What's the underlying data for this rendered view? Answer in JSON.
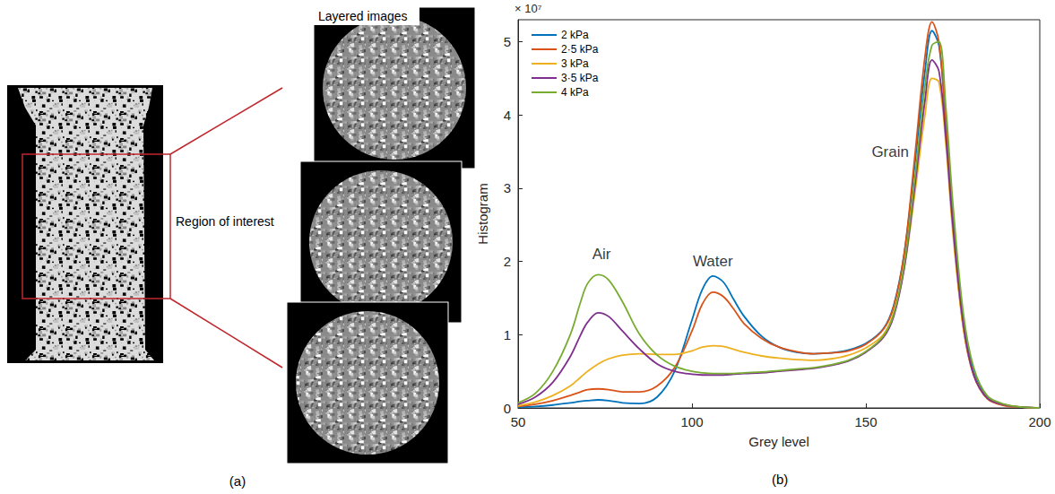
{
  "figure": {
    "panel_a": {
      "label": "(a)",
      "inset_title": "Layered images",
      "annotation": "Region of interest"
    },
    "panel_b": {
      "label": "(b)"
    }
  },
  "chart_data": {
    "type": "line",
    "x_label": "Grey level",
    "y_label": "Histogram",
    "y_scale_label": "× 10⁷",
    "x": [
      50,
      55,
      60,
      65,
      68,
      70,
      73,
      76,
      80,
      85,
      90,
      95,
      100,
      103,
      106,
      109,
      112,
      115,
      120,
      125,
      130,
      135,
      140,
      145,
      150,
      155,
      158,
      161,
      164,
      167,
      169,
      171,
      173,
      175,
      178,
      181,
      185,
      190,
      195,
      200
    ],
    "series": [
      {
        "name": "2 kPa",
        "color": "#0072bd",
        "values": [
          0.01,
          0.02,
          0.04,
          0.07,
          0.09,
          0.1,
          0.11,
          0.1,
          0.07,
          0.06,
          0.15,
          0.5,
          1.2,
          1.62,
          1.8,
          1.72,
          1.48,
          1.25,
          0.98,
          0.83,
          0.76,
          0.74,
          0.75,
          0.79,
          0.88,
          1.08,
          1.4,
          2.1,
          3.3,
          4.6,
          5.15,
          4.95,
          3.9,
          2.6,
          1.2,
          0.5,
          0.15,
          0.04,
          0.01,
          0
        ]
      },
      {
        "name": "2·5 kPa",
        "color": "#d95319",
        "values": [
          0.02,
          0.05,
          0.1,
          0.17,
          0.22,
          0.25,
          0.26,
          0.25,
          0.22,
          0.22,
          0.3,
          0.55,
          1.05,
          1.42,
          1.58,
          1.52,
          1.35,
          1.15,
          0.95,
          0.83,
          0.77,
          0.74,
          0.75,
          0.78,
          0.87,
          1.07,
          1.38,
          2.1,
          3.4,
          4.8,
          5.27,
          5.0,
          3.9,
          2.5,
          1.1,
          0.45,
          0.12,
          0.03,
          0.01,
          0
        ]
      },
      {
        "name": "3 kPa",
        "color": "#edb120",
        "values": [
          0.03,
          0.08,
          0.17,
          0.3,
          0.42,
          0.5,
          0.6,
          0.67,
          0.72,
          0.74,
          0.73,
          0.73,
          0.78,
          0.83,
          0.85,
          0.84,
          0.8,
          0.76,
          0.71,
          0.68,
          0.66,
          0.65,
          0.67,
          0.72,
          0.82,
          1.0,
          1.3,
          1.9,
          2.9,
          4.0,
          4.5,
          4.45,
          3.6,
          2.4,
          1.1,
          0.45,
          0.13,
          0.04,
          0.01,
          0
        ]
      },
      {
        "name": "3·5 kPa",
        "color": "#7e2f8e",
        "values": [
          0.05,
          0.15,
          0.35,
          0.7,
          1.0,
          1.17,
          1.3,
          1.25,
          1.05,
          0.8,
          0.6,
          0.5,
          0.46,
          0.45,
          0.45,
          0.45,
          0.46,
          0.47,
          0.48,
          0.5,
          0.52,
          0.54,
          0.58,
          0.64,
          0.76,
          0.96,
          1.25,
          1.9,
          3.0,
          4.2,
          4.75,
          4.6,
          3.7,
          2.5,
          1.15,
          0.45,
          0.13,
          0.04,
          0.01,
          0
        ]
      },
      {
        "name": "4 kPa",
        "color": "#77ac30",
        "values": [
          0.07,
          0.2,
          0.5,
          1.0,
          1.45,
          1.7,
          1.82,
          1.75,
          1.45,
          1.0,
          0.72,
          0.57,
          0.5,
          0.48,
          0.47,
          0.47,
          0.47,
          0.48,
          0.49,
          0.51,
          0.53,
          0.55,
          0.59,
          0.65,
          0.77,
          0.98,
          1.28,
          1.95,
          3.1,
          4.4,
          4.95,
          5.0,
          4.1,
          2.8,
          1.3,
          0.55,
          0.16,
          0.05,
          0.01,
          0
        ]
      }
    ],
    "annotations": [
      {
        "text": "Air",
        "x": 74,
        "y": 2.1
      },
      {
        "text": "Water",
        "x": 106,
        "y": 2.0
      },
      {
        "text": "Grain",
        "x": 157,
        "y": 3.5
      }
    ],
    "xlim": [
      50,
      200
    ],
    "xticks": [
      50,
      100,
      150,
      200
    ],
    "ylim": [
      0,
      5.3
    ],
    "yticks": [
      0,
      1,
      2,
      3,
      4,
      5
    ],
    "grid": false,
    "legend": "upper left"
  }
}
